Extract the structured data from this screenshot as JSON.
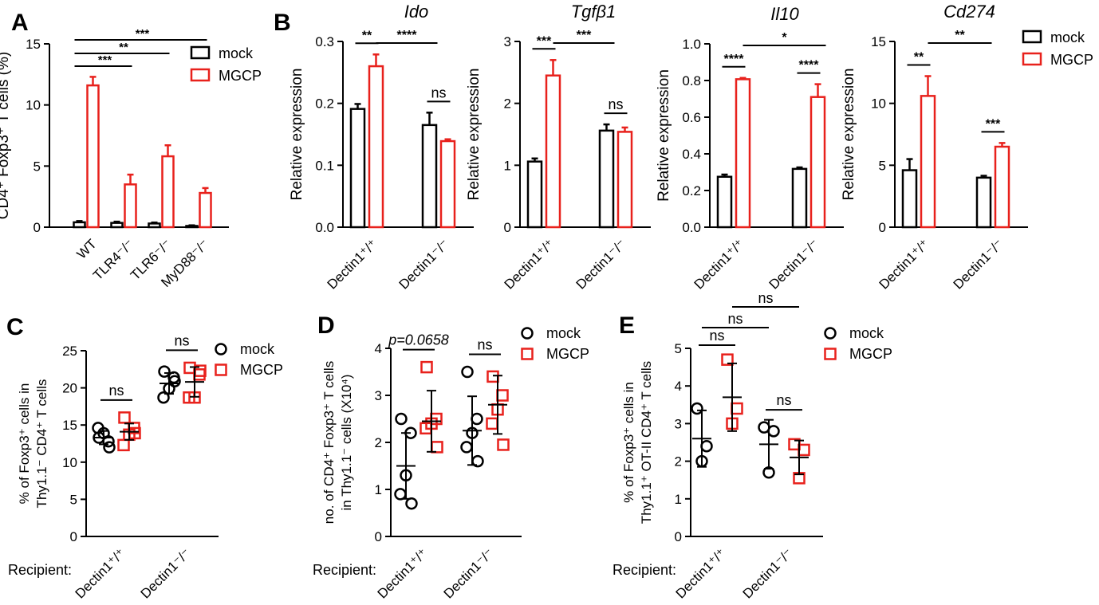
{
  "colors": {
    "mock": "#000000",
    "mgcp": "#e8211c"
  },
  "legend": [
    "mock",
    "MGCP"
  ],
  "chart_data": [
    {
      "panel": "A",
      "type": "bar",
      "ylabel": "CD4⁺ Foxp3⁺ T cells (%)",
      "ylim": [
        0,
        15
      ],
      "yticks": [
        "0",
        "5",
        "10",
        "15"
      ],
      "categories": [
        "WT",
        "TLR4⁻/⁻",
        "TLR6⁻/⁻",
        "MyD88⁻/⁻"
      ],
      "series": [
        {
          "name": "mock",
          "values": [
            0.4,
            0.35,
            0.3,
            0.1
          ],
          "errors": [
            0.1,
            0.1,
            0.08,
            0.05
          ]
        },
        {
          "name": "MGCP",
          "values": [
            11.6,
            3.5,
            5.8,
            2.8
          ],
          "errors": [
            0.7,
            0.8,
            0.9,
            0.4
          ]
        }
      ],
      "annotations": [
        {
          "text": "***",
          "from": 0,
          "to": 3
        },
        {
          "text": "**",
          "from": 0,
          "to": 2
        },
        {
          "text": "***",
          "from": 0,
          "to": 1
        }
      ]
    },
    {
      "panel": "B",
      "type": "bar",
      "title": "Ido",
      "ylabel": "Relative expression",
      "ylim": [
        0,
        0.3
      ],
      "yticks": [
        "0.0",
        "0.1",
        "0.2",
        "0.3"
      ],
      "categories": [
        "Dectin1⁺/⁺",
        "Dectin1⁻/⁻"
      ],
      "series": [
        {
          "name": "mock",
          "values": [
            0.191,
            0.165
          ],
          "errors": [
            0.008,
            0.02
          ]
        },
        {
          "name": "MGCP",
          "values": [
            0.26,
            0.139
          ],
          "errors": [
            0.019,
            0.003
          ]
        }
      ],
      "annotations": [
        {
          "text": "**",
          "type": "within",
          "group": 0
        },
        {
          "text": "****",
          "type": "between",
          "from": "g0_mgcp",
          "to": "g1_mock"
        },
        {
          "text": "ns",
          "type": "within",
          "group": 1
        }
      ]
    },
    {
      "panel": "B",
      "type": "bar",
      "title": "Tgfβ1",
      "ylabel": "Relative expression",
      "ylim": [
        0,
        3
      ],
      "yticks": [
        "0",
        "1",
        "2",
        "3"
      ],
      "categories": [
        "Dectin1⁺/⁺",
        "Dectin1⁻/⁻"
      ],
      "series": [
        {
          "name": "mock",
          "values": [
            1.06,
            1.56
          ],
          "errors": [
            0.05,
            0.1
          ]
        },
        {
          "name": "MGCP",
          "values": [
            2.45,
            1.54
          ],
          "errors": [
            0.25,
            0.07
          ]
        }
      ],
      "annotations": [
        {
          "text": "***",
          "type": "within",
          "group": 0
        },
        {
          "text": "***",
          "type": "between",
          "from": "g0_mgcp",
          "to": "g1_mock"
        },
        {
          "text": "ns",
          "type": "within",
          "group": 1
        }
      ]
    },
    {
      "panel": "B",
      "type": "bar",
      "title": "Il10",
      "ylabel": "Relative expression",
      "ylim": [
        0,
        1.0
      ],
      "yticks": [
        "0.0",
        "0.2",
        "0.4",
        "0.6",
        "0.8",
        "1.0"
      ],
      "categories": [
        "Dectin1⁺/⁺",
        "Dectin1⁻/⁻"
      ],
      "series": [
        {
          "name": "mock",
          "values": [
            0.275,
            0.318
          ],
          "errors": [
            0.012,
            0.008
          ]
        },
        {
          "name": "MGCP",
          "values": [
            0.807,
            0.71
          ],
          "errors": [
            0.007,
            0.07
          ]
        }
      ],
      "annotations": [
        {
          "text": "****",
          "type": "within",
          "group": 0
        },
        {
          "text": "*",
          "type": "between",
          "from": "g0_mgcp",
          "to": "g1_mgcp"
        },
        {
          "text": "****",
          "type": "within",
          "group": 1
        }
      ]
    },
    {
      "panel": "B",
      "type": "bar",
      "title": "Cd274",
      "ylabel": "Relative expression",
      "ylim": [
        0,
        15
      ],
      "yticks": [
        "0",
        "5",
        "10",
        "15"
      ],
      "categories": [
        "Dectin1⁺/⁺",
        "Dectin1⁻/⁻"
      ],
      "series": [
        {
          "name": "mock",
          "values": [
            4.6,
            4.0
          ],
          "errors": [
            0.9,
            0.15
          ]
        },
        {
          "name": "MGCP",
          "values": [
            10.6,
            6.5
          ],
          "errors": [
            1.6,
            0.3
          ]
        }
      ],
      "annotations": [
        {
          "text": "**",
          "type": "within",
          "group": 0
        },
        {
          "text": "**",
          "type": "between",
          "from": "g0_mgcp",
          "to": "g1_mock"
        },
        {
          "text": "***",
          "type": "within",
          "group": 1
        }
      ]
    },
    {
      "panel": "C",
      "type": "scatter",
      "ylabel_lines": [
        "% of Foxp3⁺ cells in",
        "Thy1.1⁻ CD4⁺ T cells"
      ],
      "ylim": [
        0,
        25
      ],
      "yticks": [
        "0",
        "5",
        "10",
        "15",
        "20",
        "25"
      ],
      "row_label": "Recipient:",
      "categories": [
        "Dectin1⁺/⁺",
        "Dectin1⁻/⁻"
      ],
      "groups": [
        {
          "series": "mock",
          "cat": 0,
          "points": [
            13.3,
            12.8,
            13.9,
            14.6,
            12.0
          ],
          "mean": 13.3,
          "sd": 0.9
        },
        {
          "series": "MGCP",
          "cat": 0,
          "points": [
            16.0,
            14.6,
            13.7,
            12.3,
            13.9
          ],
          "mean": 14.1,
          "sd": 1.1
        },
        {
          "series": "mock",
          "cat": 1,
          "points": [
            22.2,
            21.4,
            19.9,
            18.7,
            20.9
          ],
          "mean": 20.6,
          "sd": 1.4
        },
        {
          "series": "MGCP",
          "cat": 1,
          "points": [
            22.7,
            21.8,
            18.7,
            18.7,
            22.3
          ],
          "mean": 20.8,
          "sd": 2.0
        }
      ],
      "annotations": [
        {
          "text": "ns",
          "cat": 0
        },
        {
          "text": "ns",
          "cat": 1
        }
      ]
    },
    {
      "panel": "D",
      "type": "scatter",
      "ylabel_lines": [
        "no. of CD4⁺ Foxp3⁺ T cells",
        "in Thy1.1⁻ cells (X10⁴)"
      ],
      "ylim": [
        0,
        4
      ],
      "yticks": [
        "0",
        "1",
        "2",
        "3",
        "4"
      ],
      "row_label": "Recipient:",
      "categories": [
        "Dectin1⁺/⁺",
        "Dectin1⁻/⁻"
      ],
      "groups": [
        {
          "series": "mock",
          "cat": 0,
          "points": [
            2.5,
            2.2,
            1.3,
            0.9,
            0.7
          ],
          "mean": 1.5,
          "sd": 0.7
        },
        {
          "series": "MGCP",
          "cat": 0,
          "points": [
            3.6,
            2.5,
            2.4,
            2.3,
            1.9
          ],
          "mean": 2.45,
          "sd": 0.65
        },
        {
          "series": "mock",
          "cat": 1,
          "points": [
            3.5,
            2.5,
            2.2,
            1.9,
            1.6
          ],
          "mean": 2.25,
          "sd": 0.73
        },
        {
          "series": "MGCP",
          "cat": 1,
          "points": [
            3.4,
            3.0,
            2.7,
            2.4,
            1.95
          ],
          "mean": 2.8,
          "sd": 0.62
        }
      ],
      "annotations": [
        {
          "text": "p=0.0658",
          "cat": 0,
          "italic": true
        },
        {
          "text": "ns",
          "cat": 1
        }
      ]
    },
    {
      "panel": "E",
      "type": "scatter",
      "ylabel_lines": [
        "% of Foxp3⁺ cells in",
        "Thy1.1⁺ OT-II CD4⁺ T cells"
      ],
      "ylim": [
        0,
        5
      ],
      "yticks": [
        "0",
        "1",
        "2",
        "3",
        "4",
        "5"
      ],
      "row_label": "Recipient:",
      "categories": [
        "Dectin1⁺/⁺",
        "Dectin1⁻/⁻"
      ],
      "groups": [
        {
          "series": "mock",
          "cat": 0,
          "points": [
            3.4,
            2.4,
            2.0
          ],
          "mean": 2.6,
          "sd": 0.75
        },
        {
          "series": "MGCP",
          "cat": 0,
          "points": [
            4.7,
            3.4,
            3.0
          ],
          "mean": 3.7,
          "sd": 0.9
        },
        {
          "series": "mock",
          "cat": 1,
          "points": [
            2.9,
            2.8,
            1.7
          ],
          "mean": 2.45,
          "sd": 0.65
        },
        {
          "series": "MGCP",
          "cat": 1,
          "points": [
            2.45,
            2.3,
            1.55
          ],
          "mean": 2.1,
          "sd": 0.45
        }
      ],
      "annotations": [
        {
          "text": "ns",
          "type": "within",
          "cat": 0
        },
        {
          "text": "ns",
          "type": "within",
          "cat": 1
        },
        {
          "text": "ns",
          "type": "between",
          "from": "c0_mock",
          "to": "c1_mock"
        },
        {
          "text": "ns",
          "type": "between",
          "from": "c0_mgcp",
          "to": "c1_mgcp"
        }
      ]
    }
  ],
  "panel_letters": [
    "A",
    "B",
    "C",
    "D",
    "E"
  ]
}
